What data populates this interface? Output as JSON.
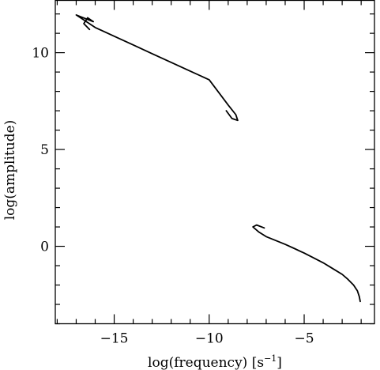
{
  "chart_data": {
    "type": "line",
    "xlabel": "log(frequency) [s",
    "xlabel_unit_exponent": "−1",
    "xlabel_suffix": "]",
    "ylabel": "log(amplitude)",
    "xlim": [
      -18.1,
      -1.3
    ],
    "ylim": [
      -4.0,
      12.7
    ],
    "xticks_major": [
      -15,
      -10,
      -5
    ],
    "xtick_labels": [
      "−15",
      "−10",
      "−5"
    ],
    "yticks_major": [
      0,
      5,
      10
    ],
    "ytick_labels": [
      "0",
      "5",
      "10"
    ],
    "minor_tick_step": 1,
    "grid": false,
    "legend": "none",
    "series": [
      {
        "points": [
          [
            -16.3,
            11.2
          ],
          [
            -16.6,
            11.5
          ],
          [
            -16.4,
            11.8
          ],
          [
            -16.1,
            11.6
          ],
          [
            -17.0,
            11.95
          ],
          [
            -16.0,
            11.3
          ],
          [
            -15.0,
            10.85
          ],
          [
            -14.0,
            10.4
          ],
          [
            -13.0,
            9.95
          ],
          [
            -12.0,
            9.5
          ],
          [
            -11.0,
            9.05
          ],
          [
            -10.0,
            8.6
          ],
          [
            -9.0,
            7.3
          ],
          [
            -8.6,
            6.8
          ],
          [
            -8.5,
            6.5
          ],
          [
            -8.8,
            6.6
          ],
          [
            -9.1,
            7.0
          ]
        ]
      },
      {
        "points": [
          [
            -7.1,
            0.95
          ],
          [
            -7.5,
            1.1
          ],
          [
            -7.7,
            1.0
          ],
          [
            -7.4,
            0.75
          ],
          [
            -7.0,
            0.5
          ],
          [
            -6.5,
            0.3
          ],
          [
            -6.0,
            0.1
          ],
          [
            -5.5,
            -0.12
          ],
          [
            -5.0,
            -0.35
          ],
          [
            -4.5,
            -0.6
          ],
          [
            -4.0,
            -0.85
          ],
          [
            -3.5,
            -1.15
          ],
          [
            -3.0,
            -1.45
          ],
          [
            -2.7,
            -1.7
          ],
          [
            -2.4,
            -2.0
          ],
          [
            -2.2,
            -2.3
          ],
          [
            -2.1,
            -2.6
          ],
          [
            -2.05,
            -2.85
          ]
        ]
      }
    ]
  }
}
